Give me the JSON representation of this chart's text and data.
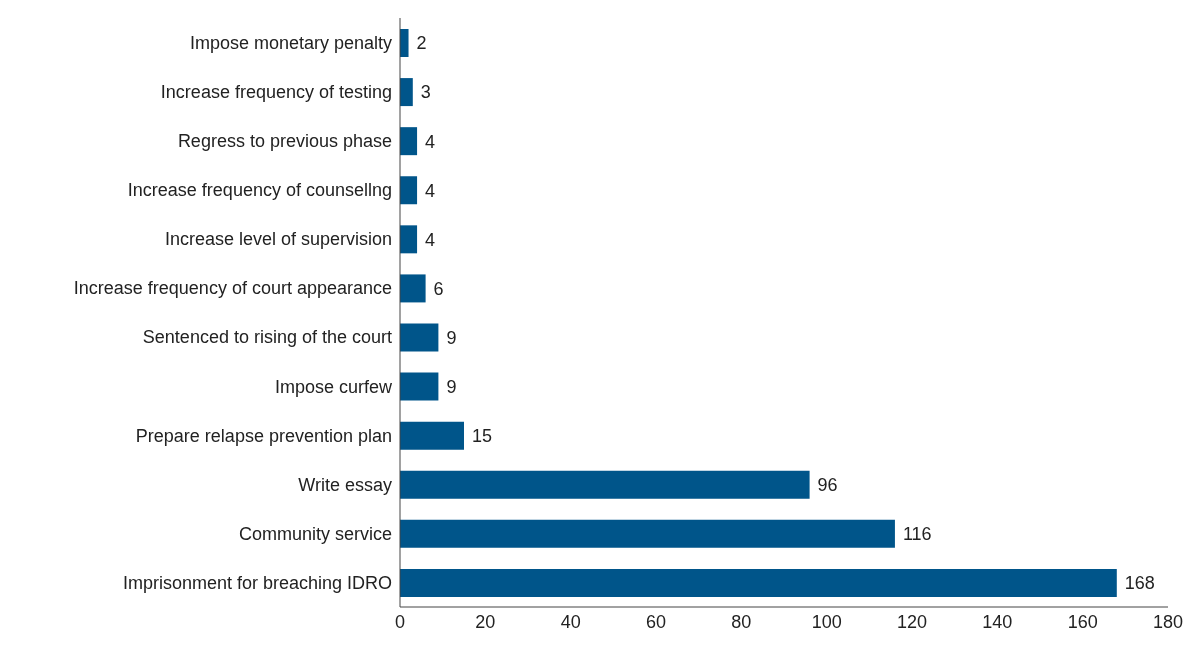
{
  "chart_data": {
    "type": "bar",
    "orientation": "horizontal",
    "categories": [
      "Impose monetary penalty",
      "Increase frequency of testing",
      "Regress to previous phase",
      "Increase frequency of counsellng",
      "Increase level of supervision",
      "Increase frequency of court appearance",
      "Sentenced to rising of the court",
      "Impose curfew",
      "Prepare relapse prevention plan",
      "Write essay",
      "Community service",
      "Imprisonment for breaching IDRO"
    ],
    "values": [
      2,
      3,
      4,
      4,
      4,
      6,
      9,
      9,
      15,
      96,
      116,
      168
    ],
    "color": "#00558a",
    "xlim": [
      0,
      180
    ],
    "xticks": [
      0,
      20,
      40,
      60,
      80,
      100,
      120,
      140,
      160,
      180
    ],
    "grid": false,
    "legend": false,
    "data_labels": true
  }
}
